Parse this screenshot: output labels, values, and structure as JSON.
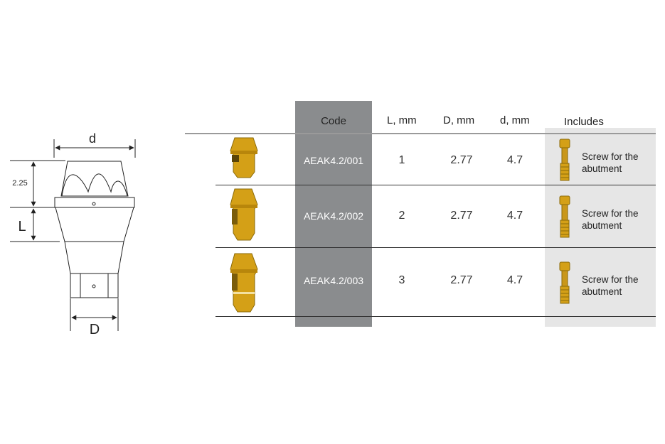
{
  "diagram": {
    "label_d": "d",
    "label_D": "D",
    "label_L": "L",
    "label_225": "2.25"
  },
  "table": {
    "headers": {
      "code": "Code",
      "L": "L, mm",
      "D": "D, mm",
      "d": "d, mm",
      "includes": "Includes"
    },
    "rows": [
      {
        "code": "AEAK4.2/001",
        "L": "1",
        "D": "2.77",
        "d": "4.7",
        "includes": "Screw for the abutment"
      },
      {
        "code": "AEAK4.2/002",
        "L": "2",
        "D": "2.77",
        "d": "4.7",
        "includes": "Screw for the abutment"
      },
      {
        "code": "AEAK4.2/003",
        "L": "3",
        "D": "2.77",
        "d": "4.7",
        "includes": "Screw for the abutment"
      }
    ]
  },
  "colors": {
    "code_column": "#8a8c8e",
    "includes_column": "#e6e6e6",
    "gold": "#d4a017"
  },
  "icons": [
    "abutment-technical-drawing",
    "gold-abutment-image",
    "gold-screw-image"
  ]
}
